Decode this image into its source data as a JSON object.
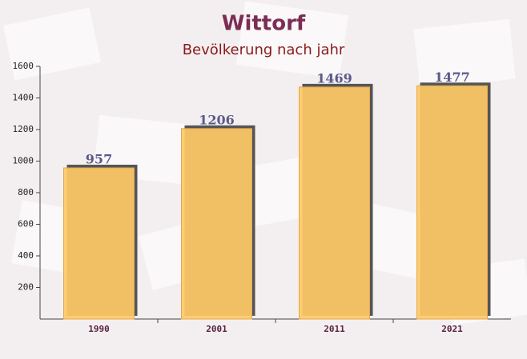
{
  "chart_data": {
    "type": "bar",
    "title": "Wittorf",
    "subtitle": "Bevölkerung nach jahr",
    "categories": [
      "1990",
      "2001",
      "2011",
      "2021"
    ],
    "values": [
      957,
      1206,
      1469,
      1477
    ],
    "color": "#ffc966",
    "ylim": [
      0,
      1600
    ],
    "yticks": [
      200,
      400,
      600,
      800,
      1000,
      1200,
      1400,
      1600
    ],
    "grid": false
  }
}
